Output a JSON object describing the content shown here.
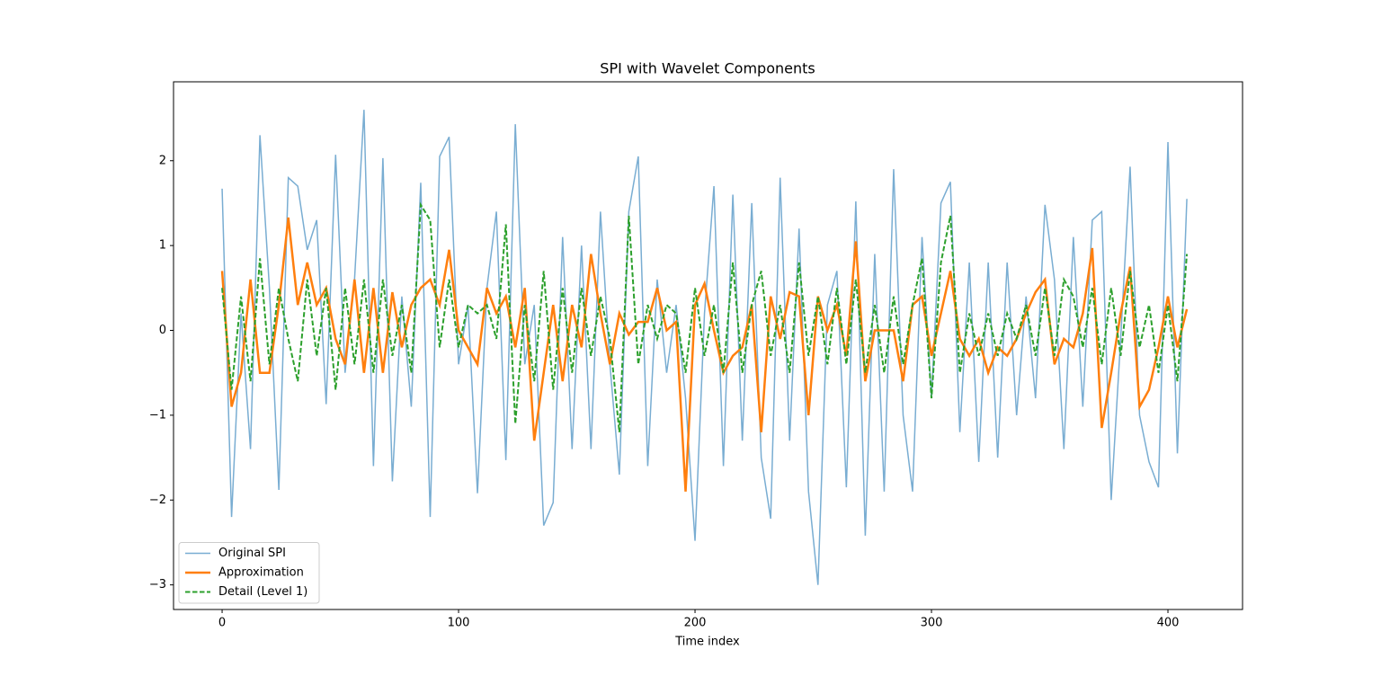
{
  "chart_data": {
    "type": "line",
    "title": "SPI with Wavelet Components",
    "xlabel": "Time index",
    "x": [
      0,
      4,
      8,
      12,
      16,
      20,
      24,
      28,
      32,
      36,
      40,
      44,
      48,
      52,
      56,
      60,
      64,
      68,
      72,
      76,
      80,
      84,
      88,
      92,
      96,
      100,
      104,
      108,
      112,
      116,
      120,
      124,
      128,
      132,
      136,
      140,
      144,
      148,
      152,
      156,
      160,
      164,
      168,
      172,
      176,
      180,
      184,
      188,
      192,
      196,
      200,
      204,
      208,
      212,
      216,
      220,
      224,
      228,
      232,
      236,
      240,
      244,
      248,
      252,
      256,
      260,
      264,
      268,
      272,
      276,
      280,
      284,
      288,
      292,
      296,
      300,
      304,
      308,
      312,
      316,
      320,
      324,
      328,
      332,
      336,
      340,
      344,
      348,
      352,
      356,
      360,
      364,
      368,
      372,
      376,
      380,
      384,
      388,
      392,
      396,
      400,
      404,
      408
    ],
    "series": [
      {
        "name": "Original SPI",
        "color": "#1f77b4",
        "alpha": 0.6,
        "linewidth": 1.5,
        "linestyle": "solid",
        "values": [
          1.67,
          -2.2,
          0.2,
          -1.4,
          2.3,
          0.5,
          -1.88,
          1.8,
          1.7,
          0.95,
          1.3,
          -0.87,
          2.07,
          -0.5,
          0.6,
          2.6,
          -1.6,
          2.03,
          -1.78,
          0.4,
          -0.9,
          1.74,
          -2.2,
          2.05,
          2.28,
          -0.4,
          0.3,
          -1.92,
          0.5,
          1.4,
          -1.53,
          2.43,
          -0.4,
          0.3,
          -2.3,
          -2.03,
          1.1,
          -1.4,
          1.0,
          -1.4,
          1.4,
          -0.4,
          -1.7,
          1.4,
          2.05,
          -1.6,
          0.6,
          -0.5,
          0.3,
          -0.8,
          -2.48,
          0.2,
          1.7,
          -1.6,
          1.6,
          -1.3,
          1.5,
          -1.5,
          -2.22,
          1.8,
          -1.3,
          1.2,
          -1.9,
          -3.0,
          0.3,
          0.7,
          -1.85,
          1.52,
          -2.42,
          0.9,
          -1.9,
          1.9,
          -1.0,
          -1.9,
          1.1,
          -0.8,
          1.5,
          1.75,
          -1.2,
          0.8,
          -1.55,
          0.8,
          -1.5,
          0.8,
          -1.0,
          0.4,
          -0.8,
          1.48,
          0.6,
          -1.4,
          1.1,
          -0.9,
          1.3,
          1.4,
          -2.0,
          -0.1,
          1.93,
          -1.0,
          -1.55,
          -1.85,
          2.22,
          -1.45,
          1.55
        ]
      },
      {
        "name": "Approximation",
        "color": "#ff7f0e",
        "alpha": 1,
        "linewidth": 2.5,
        "linestyle": "solid",
        "values": [
          0.7,
          -0.9,
          -0.5,
          0.6,
          -0.5,
          -0.5,
          0.3,
          1.33,
          0.3,
          0.8,
          0.3,
          0.5,
          -0.1,
          -0.4,
          0.6,
          -0.5,
          0.5,
          -0.5,
          0.45,
          -0.2,
          0.3,
          0.5,
          0.6,
          0.3,
          0.95,
          0.0,
          -0.2,
          -0.4,
          0.5,
          0.2,
          0.4,
          -0.2,
          0.5,
          -1.3,
          -0.5,
          0.3,
          -0.6,
          0.3,
          -0.2,
          0.9,
          0.2,
          -0.4,
          0.2,
          -0.05,
          0.1,
          0.1,
          0.5,
          0.0,
          0.1,
          -1.9,
          0.3,
          0.55,
          0.0,
          -0.5,
          -0.3,
          -0.2,
          0.3,
          -1.2,
          0.4,
          -0.1,
          0.45,
          0.4,
          -1.0,
          0.4,
          0.0,
          0.3,
          -0.3,
          1.05,
          -0.6,
          0.0,
          0.0,
          0.0,
          -0.6,
          0.3,
          0.4,
          -0.3,
          0.2,
          0.7,
          -0.1,
          -0.3,
          -0.1,
          -0.5,
          -0.2,
          -0.3,
          -0.1,
          0.2,
          0.45,
          0.6,
          -0.4,
          -0.1,
          -0.2,
          0.2,
          0.97,
          -1.15,
          -0.5,
          0.2,
          0.75,
          -0.9,
          -0.7,
          -0.2,
          0.4,
          -0.2,
          0.25
        ]
      },
      {
        "name": "Detail (Level 1)",
        "color": "#2ca02c",
        "alpha": 1,
        "linewidth": 2,
        "linestyle": "dashed",
        "values": [
          0.5,
          -0.7,
          0.4,
          -0.6,
          0.85,
          -0.4,
          0.5,
          -0.1,
          -0.6,
          0.6,
          -0.3,
          0.5,
          -0.7,
          0.5,
          -0.4,
          0.6,
          -0.5,
          0.6,
          -0.3,
          0.3,
          -0.5,
          1.48,
          1.3,
          -0.2,
          0.6,
          -0.2,
          0.3,
          0.2,
          0.3,
          -0.1,
          1.25,
          -1.1,
          0.3,
          -0.6,
          0.7,
          -0.7,
          0.5,
          -0.5,
          0.5,
          -0.3,
          0.4,
          -0.1,
          -1.2,
          1.35,
          -0.4,
          0.3,
          -0.1,
          0.3,
          0.2,
          -0.5,
          0.5,
          -0.3,
          0.3,
          -0.5,
          0.8,
          -0.5,
          0.3,
          0.7,
          -0.3,
          0.3,
          -0.5,
          0.8,
          -0.3,
          0.4,
          -0.4,
          0.5,
          -0.4,
          0.6,
          -0.5,
          0.3,
          -0.5,
          0.4,
          -0.4,
          0.3,
          0.85,
          -0.8,
          0.8,
          1.35,
          -0.5,
          0.2,
          -0.3,
          0.2,
          -0.3,
          0.2,
          -0.1,
          0.3,
          -0.3,
          0.5,
          -0.3,
          0.6,
          0.4,
          -0.2,
          0.5,
          -0.4,
          0.5,
          -0.3,
          0.7,
          -0.2,
          0.3,
          -0.5,
          0.3,
          -0.6,
          0.9
        ]
      }
    ],
    "xlim": [
      -20.55,
      431.55
    ],
    "ylim": [
      -3.29,
      2.93
    ],
    "xticks": [
      0,
      100,
      200,
      300,
      400
    ],
    "yticks": [
      {
        "value": -3,
        "label": "−3"
      },
      {
        "value": -2,
        "label": "−2"
      },
      {
        "value": -1,
        "label": "−1"
      },
      0,
      1,
      2
    ],
    "legend": "lower left"
  }
}
